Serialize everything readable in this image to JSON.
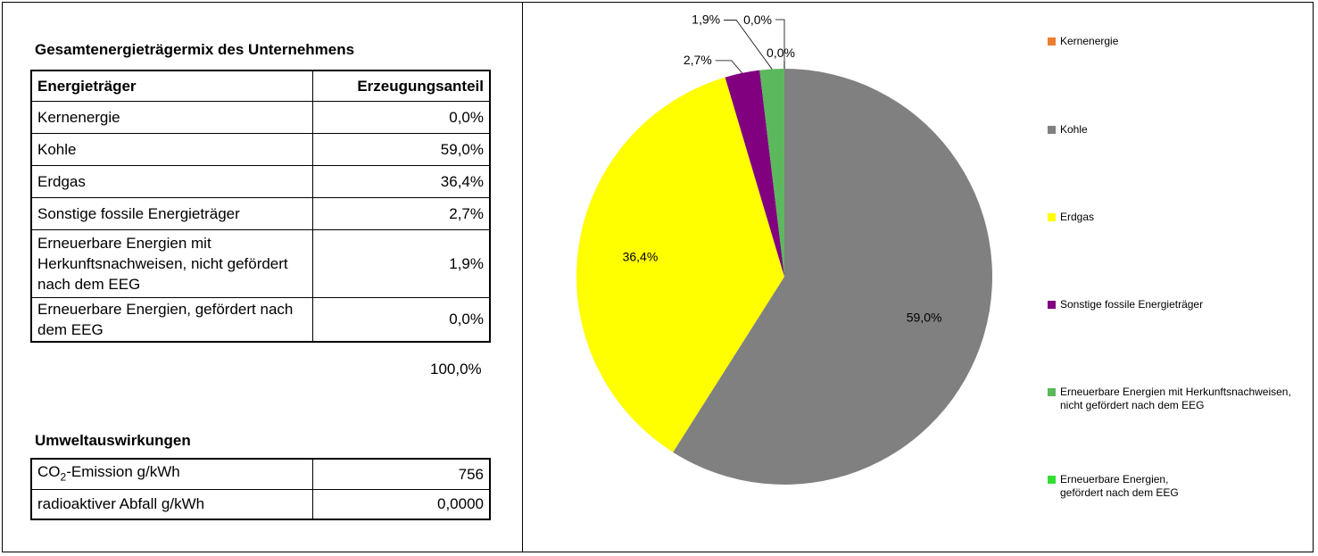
{
  "left": {
    "mix_title": "Gesamtenergieträgermix des Unternehmens",
    "mix_header": {
      "col1": "Energieträger",
      "col2": "Erzeugungsanteil"
    },
    "mix_rows": [
      {
        "label": "Kernenergie",
        "value": "0,0%"
      },
      {
        "label": "Kohle",
        "value": "59,0%"
      },
      {
        "label": "Erdgas",
        "value": "36,4%"
      },
      {
        "label": "Sonstige fossile Energieträger",
        "value": "2,7%"
      },
      {
        "label": "Erneuerbare Energien mit Herkunftsnachweisen, nicht gefördert nach dem EEG",
        "value": "1,9%"
      },
      {
        "label": "Erneuerbare Energien, gefördert nach dem EEG",
        "value": "0,0%"
      }
    ],
    "mix_total": "100,0%",
    "env_title": "Umweltauswirkungen",
    "env_rows": [
      {
        "label_pre": "CO",
        "label_sub": "2",
        "label_post": "-Emission g/kWh",
        "value": "756"
      },
      {
        "label": "radioaktiver Abfall g/kWh",
        "value": "0,0000"
      }
    ]
  },
  "chart_data": {
    "type": "pie",
    "categories": [
      "Kernenergie",
      "Kohle",
      "Erdgas",
      "Sonstige fossile Energieträger",
      "Erneuerbare Energien mit Herkunftsnachweisen, nicht gefördert nach dem EEG",
      "Erneuerbare Energien, gefördert nach dem EEG"
    ],
    "values": [
      0.0,
      59.0,
      36.4,
      2.7,
      1.9,
      0.0
    ],
    "data_labels": [
      "0,0%",
      "59,0%",
      "36,4%",
      "2,7%",
      "1,9%",
      "0,0%"
    ],
    "colors": [
      "#ed7d31",
      "#808080",
      "#ffff00",
      "#800080",
      "#5cb85c",
      "#33dd33"
    ],
    "legend_placement": "right",
    "start_angle": "top, clockwise"
  }
}
